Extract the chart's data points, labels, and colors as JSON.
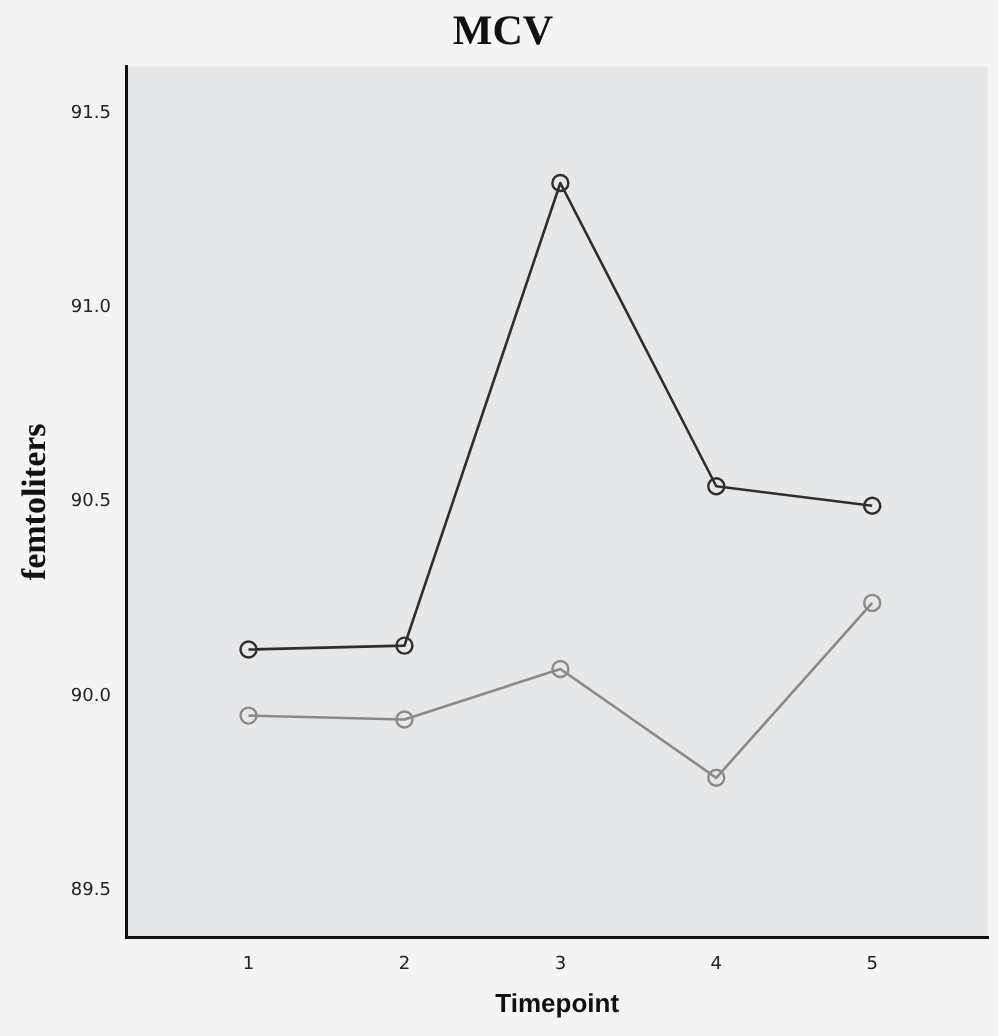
{
  "chart_data": {
    "type": "line",
    "title": "MCV",
    "xlabel": "Timepoint",
    "ylabel": "femtoliters",
    "x": [
      1,
      2,
      3,
      4,
      5
    ],
    "series": [
      {
        "color": "#2e2e2e",
        "values": [
          90.12,
          90.13,
          91.32,
          90.54,
          90.49
        ]
      },
      {
        "color": "#8a8a8a",
        "values": [
          89.95,
          89.94,
          90.07,
          89.79,
          90.24
        ]
      }
    ],
    "xlim": [
      0.22,
      5.74
    ],
    "xticks": [
      1,
      2,
      3,
      4,
      5
    ],
    "ylim": [
      89.38,
      91.62
    ],
    "yticks": [
      {
        "value": 89.5,
        "label": "89.5"
      },
      {
        "value": 90,
        "label": "90.0"
      },
      {
        "value": 90.5,
        "label": "90.5"
      },
      {
        "value": 91,
        "label": "91.0"
      },
      {
        "value": 91.5,
        "label": "91.5"
      }
    ],
    "grid": false,
    "legend": false,
    "marker": "circle",
    "line_style": "solid"
  }
}
